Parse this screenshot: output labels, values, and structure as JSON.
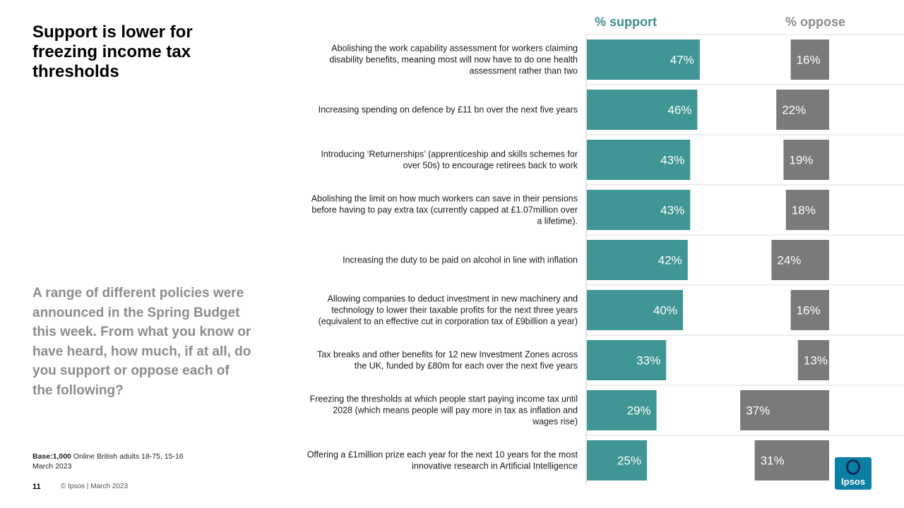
{
  "slide": {
    "title": "Support is lower for freezing income tax thresholds",
    "question": "A range of different policies were announced in the Spring Budget this week. From what you know or have heard, how much, if at all, do you support or oppose each of the following?",
    "base_label": "Base:",
    "base_value": "1,000",
    "base_rest": "Online British adults 18-75, 15-16 March 2023",
    "page_number": "11",
    "copyright": "© Ipsos | March 2023",
    "logo_text": "Ipsos"
  },
  "colors": {
    "support": "#3f9694",
    "oppose": "#7a7a7a",
    "support_header": "#3f8f8d",
    "oppose_header": "#8c8c8c"
  },
  "chart_data": {
    "type": "bar",
    "headers": {
      "support": "% support",
      "oppose": "% oppose"
    },
    "categories": [
      [
        "Abolishing the work capability assessment for workers claiming",
        "disability benefits, meaning most will now have to do one health",
        "assessment rather than two"
      ],
      [
        "Increasing spending on defence by £11 bn over the next five years"
      ],
      [
        "Introducing ‘Returnerships’ (apprenticeship and skills schemes for",
        "over 50s) to encourage retirees back to work"
      ],
      [
        "Abolishing the limit on how much workers can save in their pensions",
        "before having to pay extra tax (currently capped at £1.07million over",
        "a lifetime)."
      ],
      [
        "Increasing the duty to be paid on alcohol in line with inflation"
      ],
      [
        "Allowing companies to deduct investment in new machinery and",
        "technology to lower their taxable profits for the next three years",
        "(equivalent to an effective cut in corporation tax of £9billion a year)"
      ],
      [
        "Tax breaks and other benefits for 12 new Investment Zones across",
        "the UK, funded by £80m for each over the next five years"
      ],
      [
        "Freezing the thresholds at which people start paying income tax until",
        "2028 (which means people will pay more in tax as inflation and",
        "wages rise)"
      ],
      [
        "Offering a £1million prize each year for the next 10 years for the most",
        "innovative research in Artificial Intelligence"
      ]
    ],
    "series": [
      {
        "name": "% support",
        "values": [
          47,
          46,
          43,
          43,
          42,
          40,
          33,
          29,
          25
        ],
        "labels": [
          "47%",
          "46%",
          "43%",
          "43%",
          "42%",
          "40%",
          "33%",
          "29%",
          "25%"
        ]
      },
      {
        "name": "% oppose",
        "values": [
          16,
          22,
          19,
          18,
          24,
          16,
          13,
          37,
          31
        ],
        "labels": [
          "16%",
          "22%",
          "19%",
          "18%",
          "24%",
          "16%",
          "13%",
          "37%",
          "31%"
        ]
      }
    ]
  }
}
